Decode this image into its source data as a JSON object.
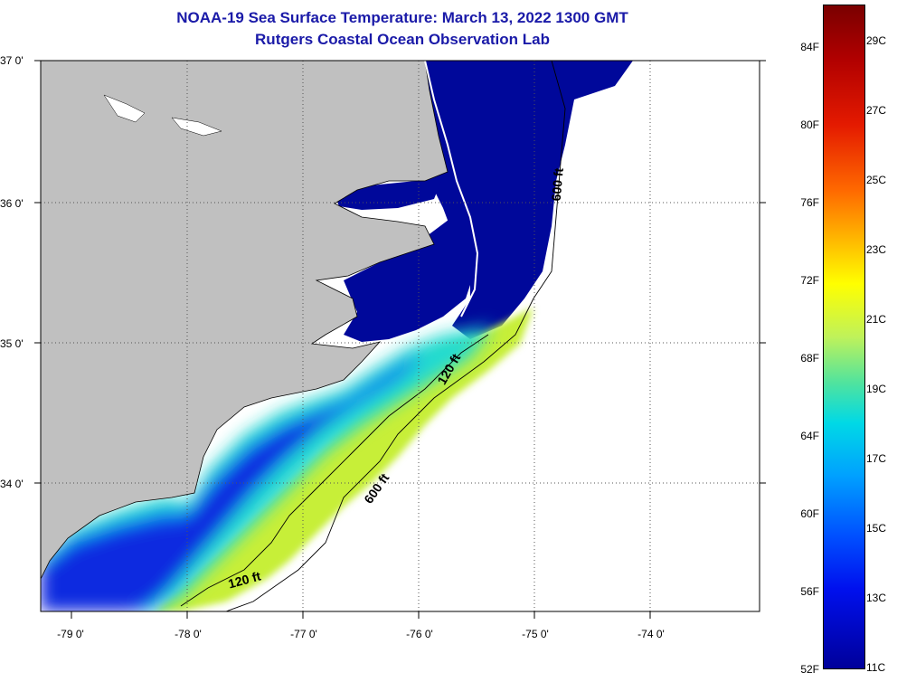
{
  "title_line1": "NOAA-19 Sea Surface Temperature:  March 13, 2022 1300 GMT",
  "title_line2": "Rutgers Coastal Ocean Observation Lab",
  "map": {
    "lat_labels": [
      "37 0'",
      "36 0'",
      "35 0'",
      "34 0'"
    ],
    "lon_labels": [
      "-79 0'",
      "-78 0'",
      "-77 0'",
      "-76 0'",
      "-75 0'",
      "-74 0'"
    ],
    "contours": [
      {
        "label": "600 ft"
      },
      {
        "label": "120 ft"
      },
      {
        "label": "600 ft"
      },
      {
        "label": "120 ft"
      }
    ]
  },
  "colorbar": {
    "fahrenheit": [
      "84F",
      "80F",
      "76F",
      "72F",
      "68F",
      "64F",
      "60F",
      "56F",
      "52F"
    ],
    "celsius": [
      "29C",
      "27C",
      "25C",
      "23C",
      "21C",
      "19C",
      "17C",
      "15C",
      "13C",
      "11C"
    ],
    "colors": [
      "#7a0000",
      "#e41a00",
      "#ffbf00",
      "#ffff00",
      "#4fe39f",
      "#00d9e6",
      "#0050ff",
      "#00009a"
    ]
  }
}
